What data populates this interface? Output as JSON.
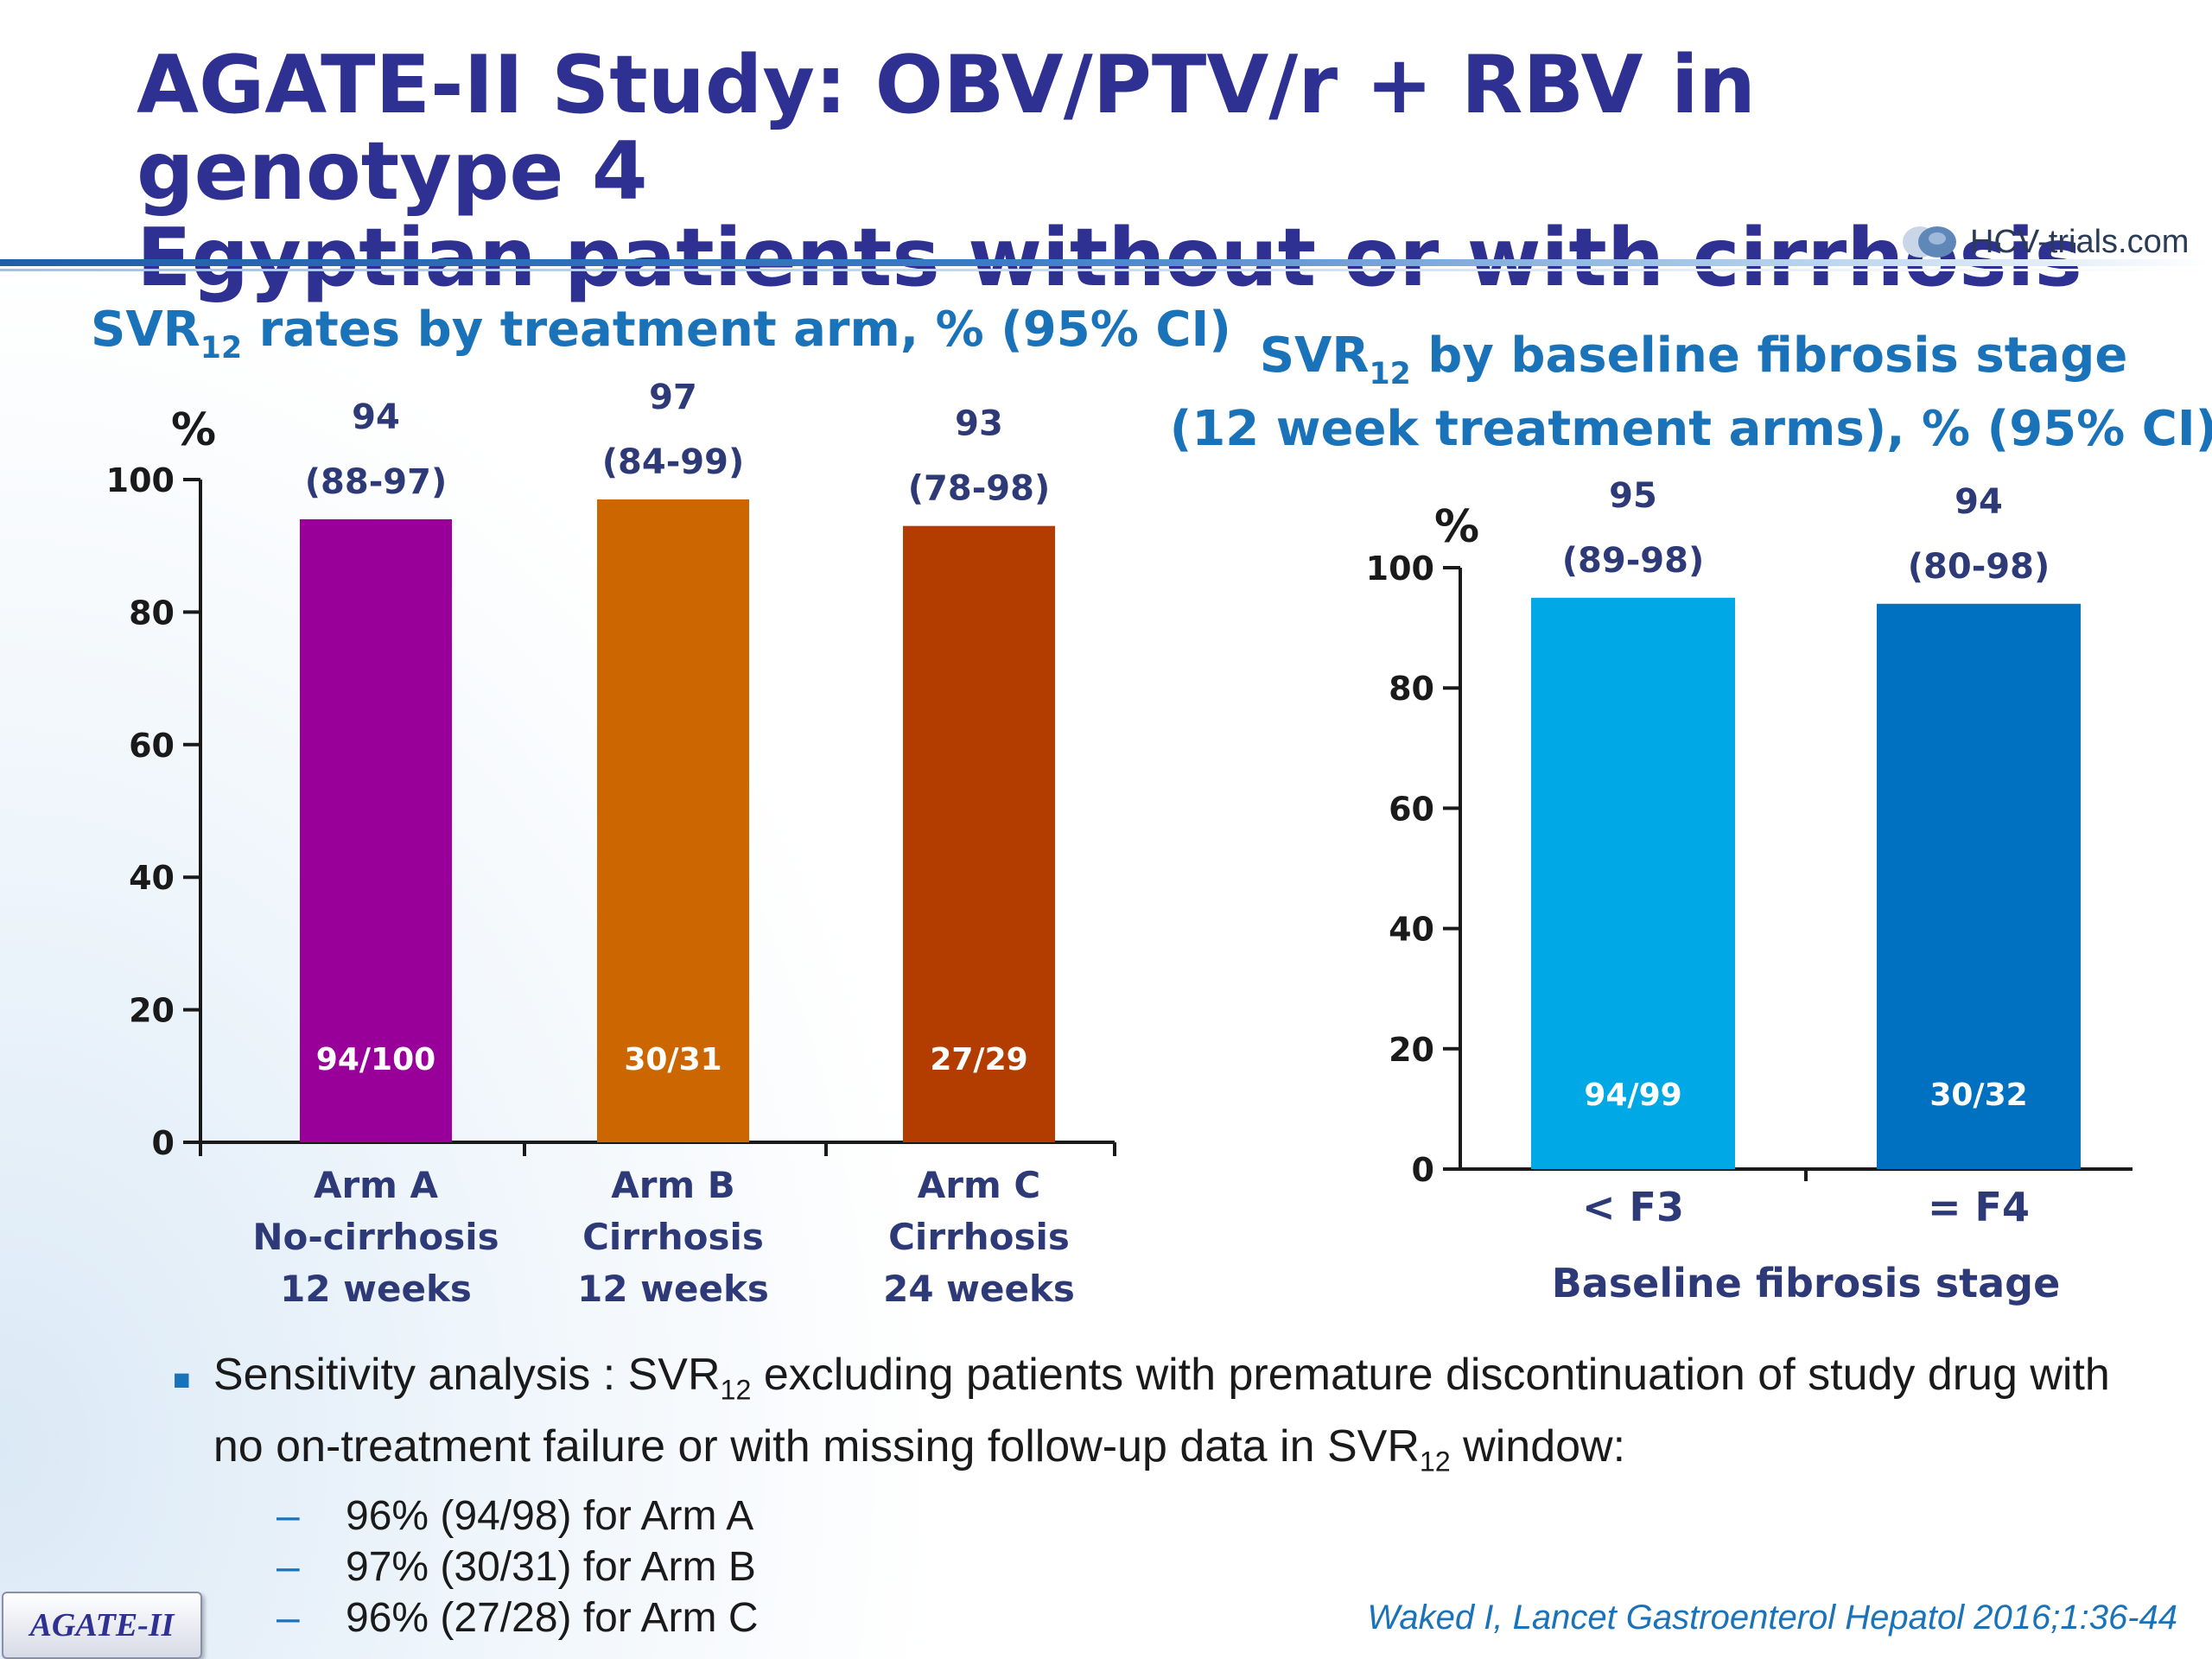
{
  "slide": {
    "title_line1": "AGATE-II Study: OBV/PTV/r + RBV in genotype 4",
    "title_line2": "Egyptian patients without or with cirrhosis",
    "logo_text": "HCV-trials.com",
    "badge": "AGATE-II",
    "reference": "Waked I, Lancet Gastroenterol Hepatol 2016;1:36-44"
  },
  "notes": {
    "bullet_pre": "Sensitivity analysis : SVR",
    "bullet_sub1": "12",
    "bullet_mid": " excluding patients with premature discontinuation of study drug with no on-treatment failure or with missing follow-up data in SVR",
    "bullet_sub2": "12",
    "bullet_post": " window:",
    "items": [
      "96% (94/98) for Arm A",
      "97% (30/31) for Arm B",
      "96% (27/28) for Arm C"
    ]
  },
  "colors": {
    "title": "#2e3192",
    "subtitle": "#1a72b8",
    "armA": "#990099",
    "armB": "#cc6600",
    "armC": "#b33c00",
    "f3": "#00a8e6",
    "f4": "#0070c0"
  },
  "chart_data": [
    {
      "type": "bar",
      "title_main": "SVR",
      "title_sub": "12",
      "title_rest": " rates by treatment arm, % (95% CI)",
      "ylabel": "%",
      "ylim": [
        0,
        100
      ],
      "yticks": [
        0,
        20,
        40,
        60,
        80,
        100
      ],
      "categories": [
        [
          "Arm A",
          "No-cirrhosis",
          "12 weeks"
        ],
        [
          "Arm B",
          "Cirrhosis",
          "12 weeks"
        ],
        [
          "Arm C",
          "Cirrhosis",
          "24 weeks"
        ]
      ],
      "values": [
        94,
        97,
        93
      ],
      "ci": [
        "(88-97)",
        "(84-99)",
        "(78-98)"
      ],
      "counts": [
        "94/100",
        "30/31",
        "27/29"
      ],
      "bar_colors": [
        "#990099",
        "#cc6600",
        "#b33c00"
      ],
      "grid": false
    },
    {
      "type": "bar",
      "title_main": "SVR",
      "title_sub": "12",
      "title_rest": " by baseline fibrosis stage",
      "title_line2": "(12 week treatment arms), % (95% CI)",
      "ylabel": "%",
      "xlabel": "Baseline fibrosis stage",
      "ylim": [
        0,
        100
      ],
      "yticks": [
        0,
        20,
        40,
        60,
        80,
        100
      ],
      "categories": [
        "< F3",
        "= F4"
      ],
      "values": [
        95,
        94
      ],
      "ci": [
        "(89-98)",
        "(80-98)"
      ],
      "counts": [
        "94/99",
        "30/32"
      ],
      "bar_colors": [
        "#00a8e6",
        "#0070c0"
      ],
      "grid": false
    }
  ]
}
